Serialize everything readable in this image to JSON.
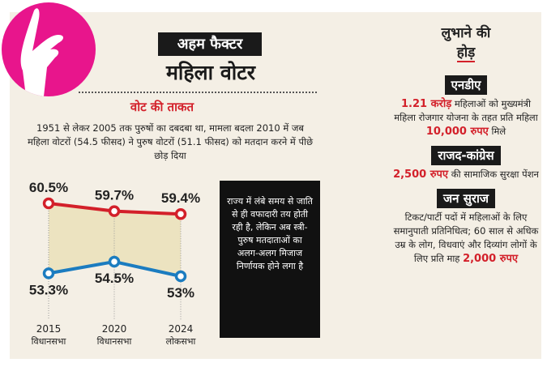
{
  "header": {
    "tag": "अहम फैक्टर",
    "title": "महिला वोटर"
  },
  "section": {
    "title": "वोट की ताकत",
    "text": "1951 से लेकर 2005 तक पुरुषों का दबदबा था, मामला बदला 2010 में जब महिला वोटरों (54.5 फीसद) ने पुरुष वोटरों (51.1 फीसद) को मतदान करने में पीछे छोड़ दिया"
  },
  "note": "राज्य में लंबे समय से जाति से ही वफादारी तय होती रही है, लेकिन अब स्त्री-पुरुष मतदाताओं का अलग-अलग मिजाज निर्णायक होने लगा है",
  "chart_data": {
    "type": "line",
    "categories": [
      [
        "2015",
        "विधानसभा"
      ],
      [
        "2020",
        "विधानसभा"
      ],
      [
        "2024",
        "लोकसभा"
      ]
    ],
    "series": [
      {
        "values": [
          60.5,
          59.7,
          59.4
        ],
        "labels": [
          "60.5%",
          "59.7%",
          "59.4%"
        ],
        "color": "#d3202a"
      },
      {
        "values": [
          53.3,
          54.5,
          53
        ],
        "labels": [
          "53.3%",
          "54.5%",
          "53%"
        ],
        "color": "#1b7cc0"
      }
    ],
    "fill_between": "#ece3c0"
  },
  "right": {
    "title1": "लुभाने की",
    "title2": "होड़",
    "blocks": [
      {
        "tag": "एनडीए",
        "hl1": "1.21 करोड़",
        "t1": " महिलाओं को मुख्यमंत्री महिला रोजगार योजना के तहत प्रति महिला ",
        "hl2": "10,000 रुपए",
        "t2": " मिले"
      },
      {
        "tag": "राजद-कांग्रेस",
        "hl1": "2,500 रुपए",
        "t1": " की सामाजिक सुरक्षा पेंशन"
      },
      {
        "tag": "जन सुराज",
        "t1": "टिकट/पार्टी पदों में महिलाओं के लिए समानुपाती प्रतिनिधित्व; 60 साल से अधिक उम्र के लोग, विधवाएं और दिव्यांग लोगों के लिए प्रति माह ",
        "hl1": "2,000 रुपए"
      }
    ]
  },
  "colors": {
    "accent": "#d3202a",
    "pink": "#e8158c",
    "blue": "#1b7cc0",
    "panel": "#f4efe5"
  }
}
